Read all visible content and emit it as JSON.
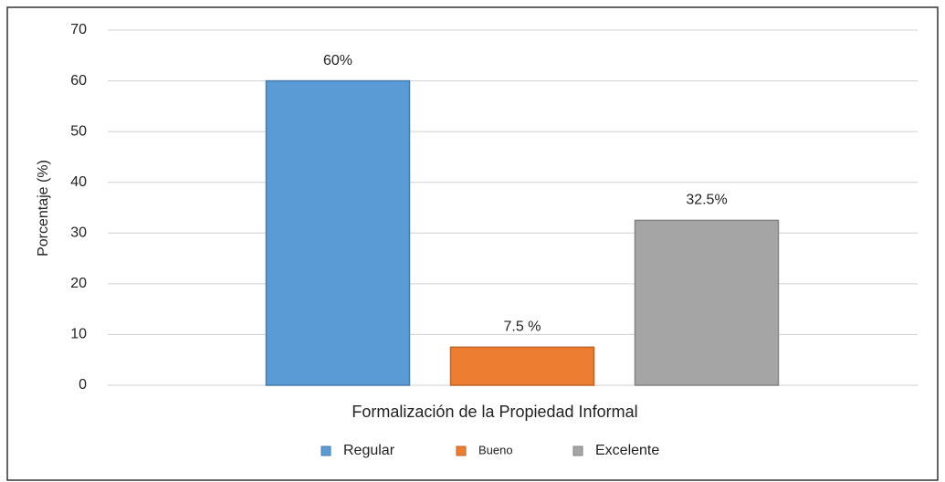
{
  "chart_data": {
    "type": "bar",
    "categories": [
      "Formalización de la Propiedad Informal"
    ],
    "ylabel": "Porcentaje (%)",
    "series": [
      {
        "name": "Regular",
        "color": "#5b9bd5",
        "values": [
          60
        ],
        "value_labels": [
          "60%"
        ]
      },
      {
        "name": "Bueno",
        "color": "#ed7d31",
        "values": [
          7.5
        ],
        "value_labels": [
          "7.5 %"
        ]
      },
      {
        "name": "Excelente",
        "color": "#a5a5a5",
        "values": [
          32.5
        ],
        "value_labels": [
          "32.5%"
        ]
      }
    ],
    "ylim": [
      0,
      70
    ],
    "yticks": [
      0,
      10,
      20,
      30,
      40,
      50,
      60,
      70
    ],
    "grid": true,
    "legend": "bottom"
  }
}
